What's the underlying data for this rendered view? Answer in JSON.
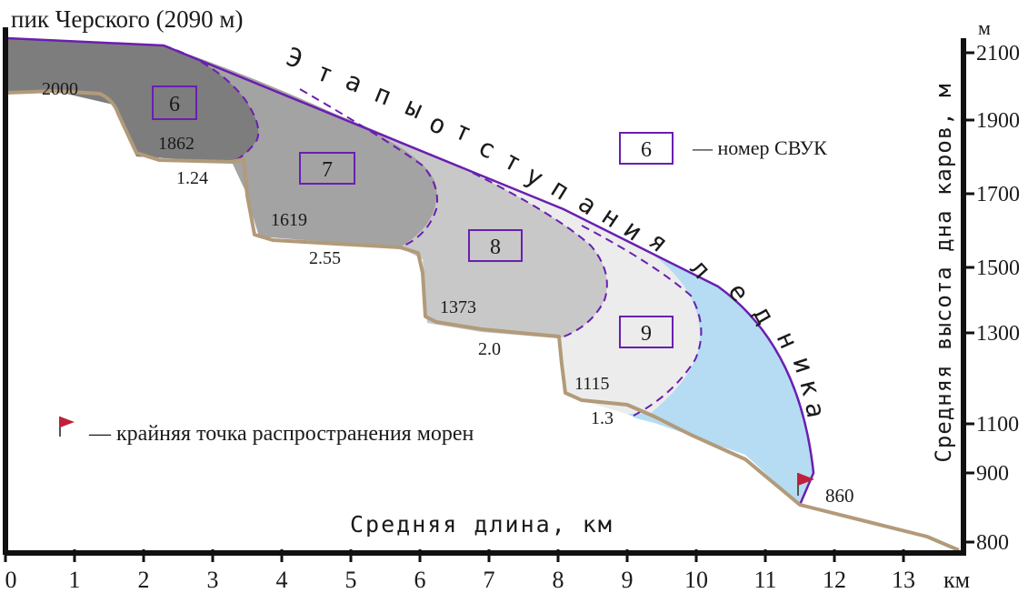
{
  "title": "пик Черского (2090 м)",
  "arc_title_letters": [
    "Э",
    "т",
    "а",
    "п",
    "ы",
    "о",
    "т",
    "с",
    "т",
    "у",
    "п",
    "а",
    "н",
    "и",
    "я",
    "л",
    "е",
    "д",
    "н",
    "и",
    "к",
    "а"
  ],
  "legend": {
    "svuk_sample": "6",
    "svuk_text": "— номер СВУК",
    "flag_text": "— крайняя точка распространения морен"
  },
  "x_axis": {
    "title": "Средняя длина, км",
    "ticks": [
      "0",
      "1",
      "2",
      "3",
      "4",
      "5",
      "6",
      "7",
      "8",
      "9",
      "10",
      "11",
      "12",
      "13"
    ],
    "unit": "км"
  },
  "y_axis": {
    "title": "Средняя высота дна каров, м",
    "unit": "м",
    "ticks": [
      "2100",
      "1900",
      "1700",
      "1500",
      "1300",
      "1100",
      "900",
      "800"
    ]
  },
  "stage_numbers": [
    "6",
    "7",
    "8",
    "9"
  ],
  "elevations": [
    "2000",
    "1862",
    "1619",
    "1373",
    "1115",
    "860"
  ],
  "lengths": [
    "1.24",
    "2.55",
    "2.0",
    "1.3"
  ],
  "colors": {
    "axis": "#111111",
    "bed": "#b29a7a",
    "glacier_outline": "#6a1fb0",
    "stage6_fill": "#7d7d7d",
    "stage7_fill": "#a3a3a3",
    "stage8_fill": "#c8c8c8",
    "stage9_fill": "#ececec",
    "modern_fill": "#b5dcf2",
    "flag": "#c0203a"
  }
}
